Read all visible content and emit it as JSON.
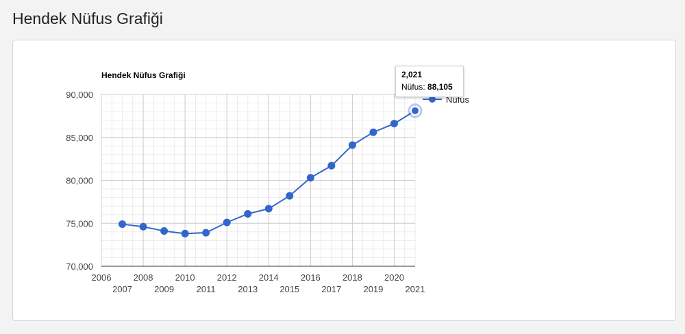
{
  "page": {
    "title": "Hendek Nüfus Grafiği"
  },
  "tooltip": {
    "title": "2,021",
    "label": "Nüfus:",
    "value": "88,105"
  },
  "chart_data": {
    "type": "line",
    "title": "Hendek Nüfus Grafiği",
    "xlabel": "",
    "ylabel": "",
    "x": [
      2007,
      2008,
      2009,
      2010,
      2011,
      2012,
      2013,
      2014,
      2015,
      2016,
      2017,
      2018,
      2019,
      2020,
      2021
    ],
    "series": [
      {
        "name": "Nüfus",
        "color": "#3366cc",
        "values": [
          74900,
          74600,
          74100,
          73800,
          73900,
          75100,
          76100,
          76700,
          78200,
          80300,
          81700,
          84100,
          85600,
          86600,
          88105
        ]
      }
    ],
    "xlim": [
      2006,
      2021
    ],
    "ylim": [
      70000,
      90000
    ],
    "x_ticks_row1": [
      "2006",
      "2008",
      "2010",
      "2012",
      "2014",
      "2016",
      "2018",
      "2020"
    ],
    "x_ticks_row2": [
      "2007",
      "2009",
      "2011",
      "2013",
      "2015",
      "2017",
      "2019",
      "2021"
    ],
    "y_ticks": [
      "70,000",
      "75,000",
      "80,000",
      "85,000",
      "90,000"
    ],
    "grid": true,
    "legend": "right",
    "highlighted_point": 2021
  }
}
